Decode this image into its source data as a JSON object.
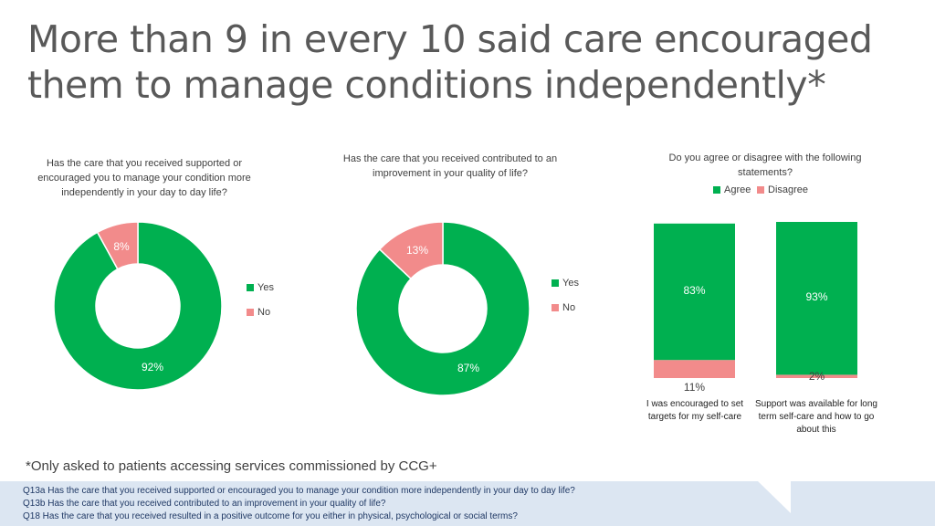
{
  "title": "More than 9 in every 10 said care encouraged them to manage conditions independently*",
  "colors": {
    "agree": "#00b050",
    "disagree": "#f28b8b",
    "question_box": "#dce6f2"
  },
  "chart_data": [
    {
      "type": "pie",
      "donut": true,
      "title": "Has the care that you received supported or encouraged you to manage your condition more independently in your day to day life?",
      "categories": [
        "Yes",
        "No"
      ],
      "values": [
        92,
        8
      ],
      "labels": [
        "92%",
        "8%"
      ],
      "legend": [
        "Yes",
        "No"
      ]
    },
    {
      "type": "pie",
      "donut": true,
      "title": "Has the care that you received contributed to an improvement in your quality of life?",
      "categories": [
        "Yes",
        "No"
      ],
      "values": [
        87,
        13
      ],
      "labels": [
        "87%",
        "13%"
      ],
      "legend": [
        "Yes",
        "No"
      ]
    },
    {
      "type": "bar",
      "stacked": true,
      "title": "Do you agree or disagree with the following statements?",
      "categories": [
        "I was encouraged to set targets for my self-care",
        "Support was available for long term self-care and how to go about this"
      ],
      "series": [
        {
          "name": "Agree",
          "values": [
            83,
            93
          ],
          "labels": [
            "83%",
            "93%"
          ]
        },
        {
          "name": "Disagree",
          "values": [
            11,
            2
          ],
          "labels": [
            "11%",
            "2%"
          ]
        }
      ],
      "ylim": [
        0,
        100
      ],
      "legend_position": "top"
    }
  ],
  "footnote": "*Only asked to patients accessing services commissioned by CCG+",
  "questions": [
    "Q13a Has the care that you received supported or encouraged you to manage your condition more independently in your day to day life?",
    "Q13b Has the care that you received contributed to an improvement in your quality of life?",
    "Q18 Has the care that you received resulted in a positive outcome for you either in physical, psychological or social terms?"
  ]
}
